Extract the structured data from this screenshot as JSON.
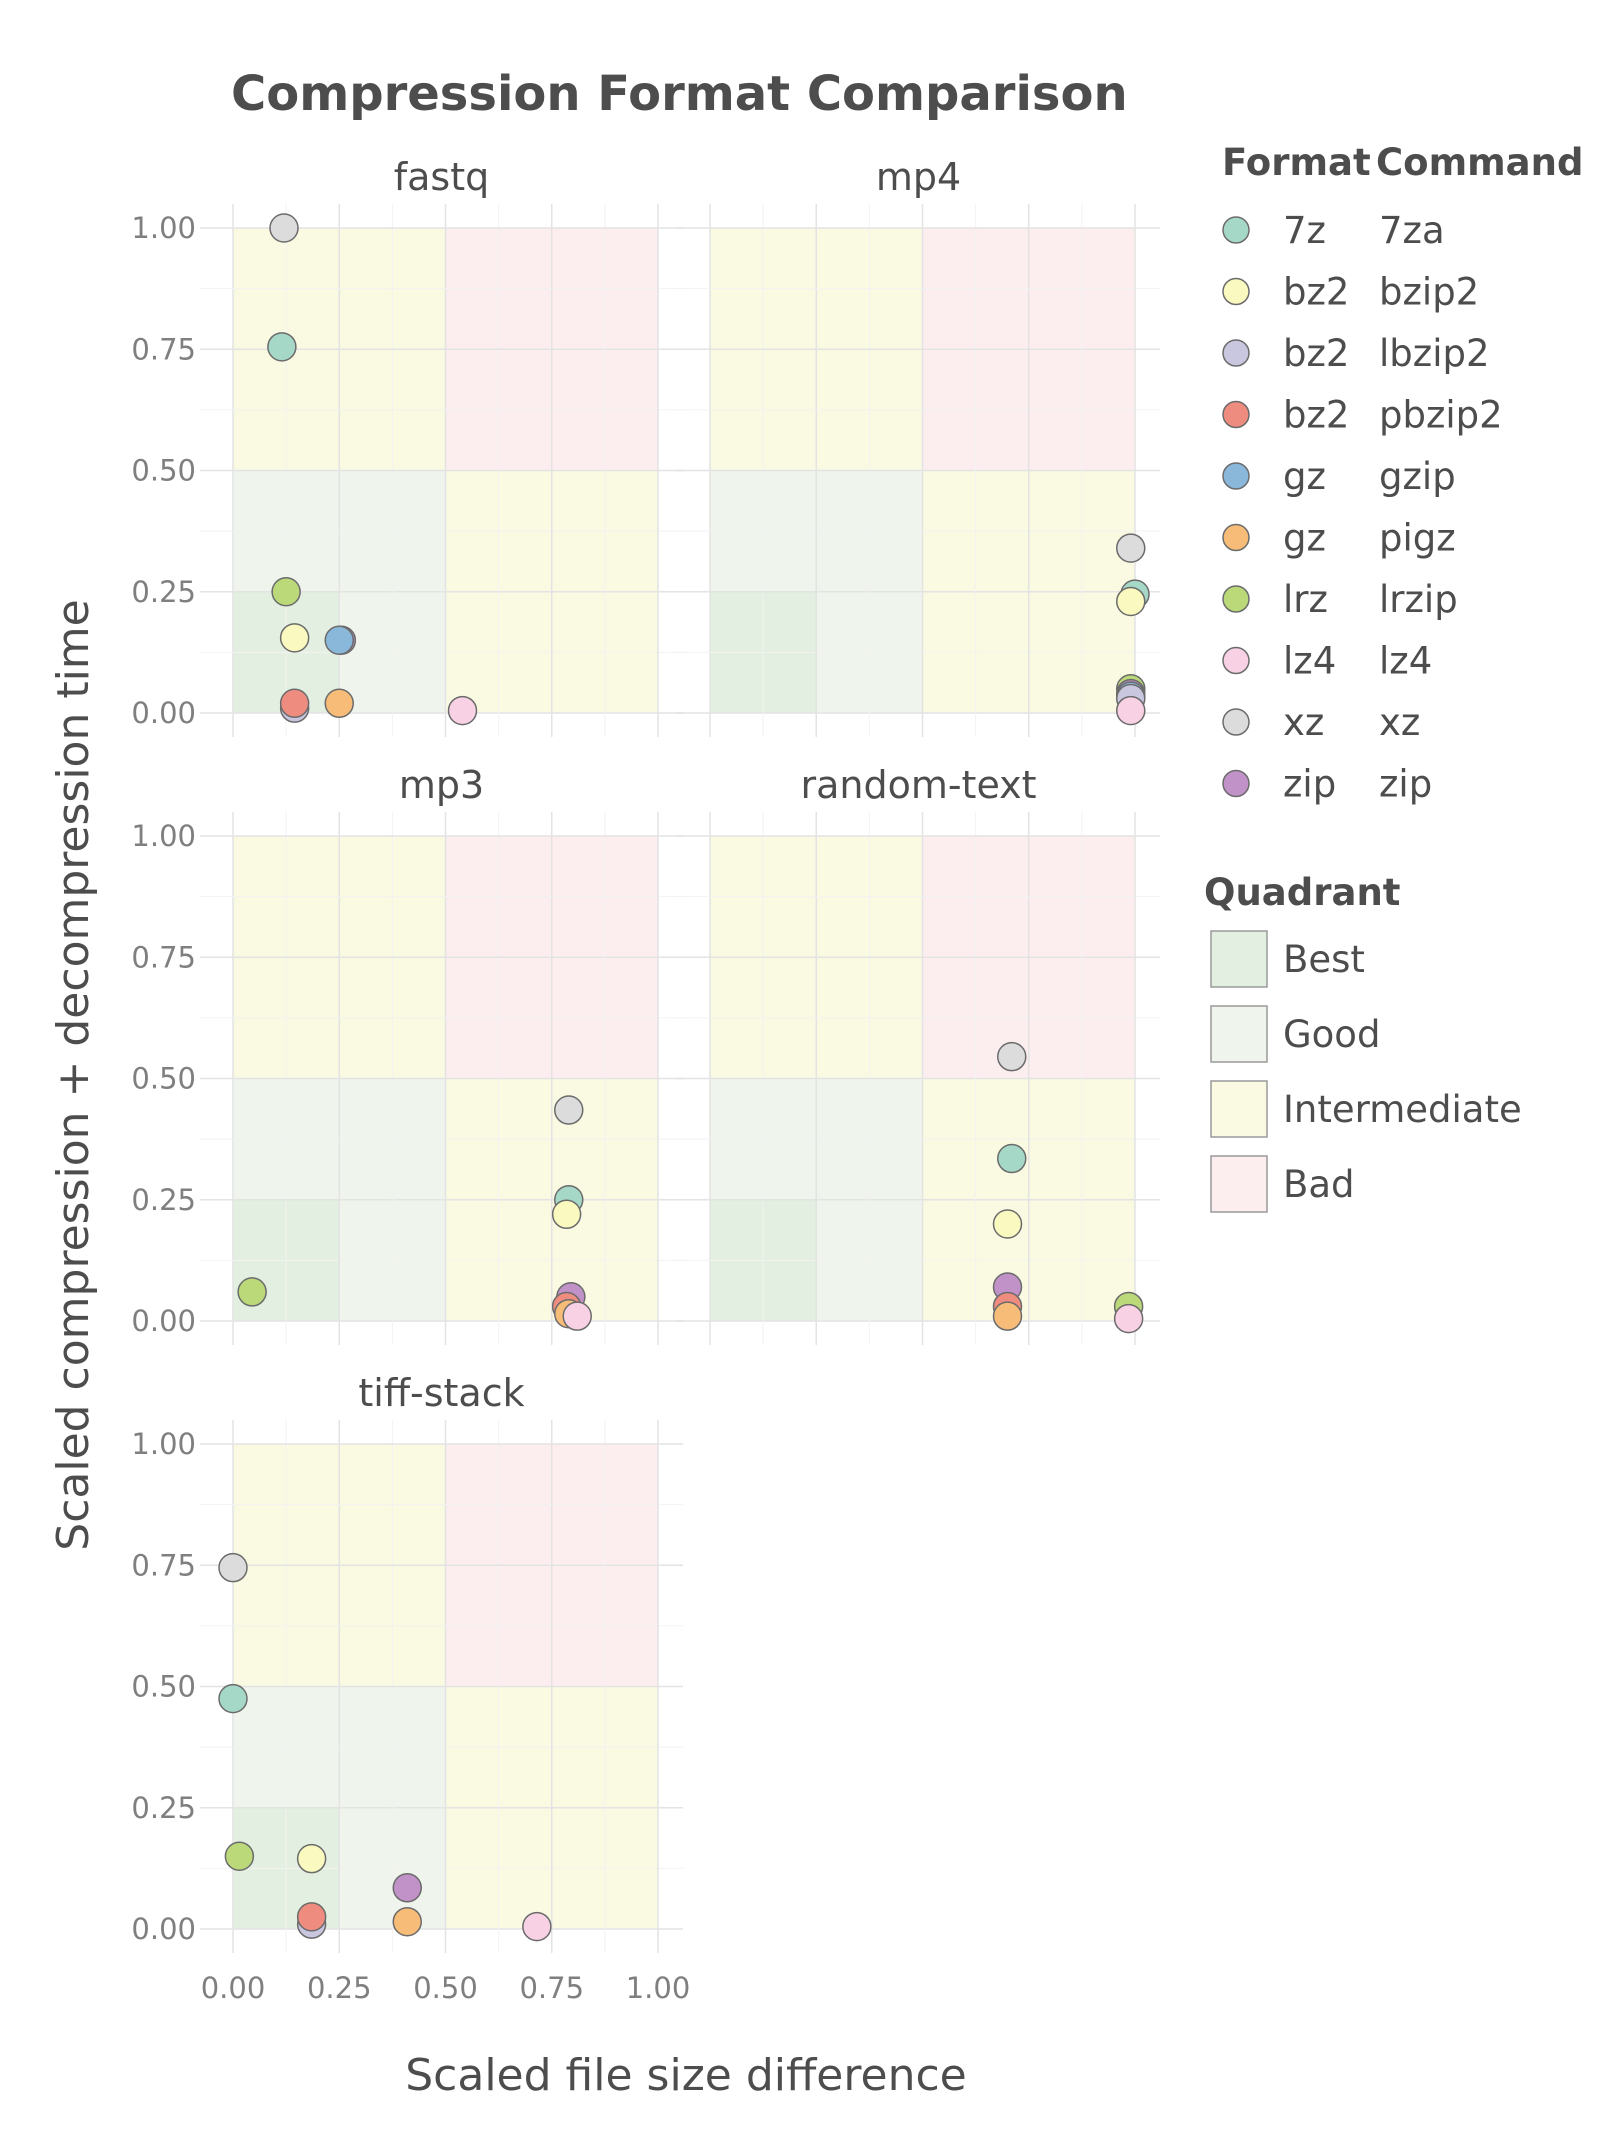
{
  "chart_data": {
    "type": "scatter",
    "title": "Compression Format Comparison",
    "xlabel": "Scaled file size difference",
    "ylabel": "Scaled compression + decompression time",
    "xlim": [
      0,
      1
    ],
    "ylim": [
      0,
      1
    ],
    "x_ticks": [
      0,
      0.25,
      0.5,
      0.75,
      1
    ],
    "y_ticks": [
      0,
      0.25,
      0.5,
      0.75,
      1
    ],
    "x_tick_labels": [
      "0.00",
      "0.25",
      "0.50",
      "0.75",
      "1.00"
    ],
    "y_tick_labels": [
      "0.00",
      "0.25",
      "0.50",
      "0.75",
      "1.00"
    ],
    "grid": true,
    "legend": {
      "placement": "right",
      "format_title": "Format",
      "command_title": "Command",
      "entries": [
        {
          "format": "7z",
          "command": "7za",
          "color": "#a6d8c8"
        },
        {
          "format": "bz2",
          "command": "bzip2",
          "color": "#fafac0"
        },
        {
          "format": "bz2",
          "command": "lbzip2",
          "color": "#c9c6e0"
        },
        {
          "format": "bz2",
          "command": "pbzip2",
          "color": "#ee8c80"
        },
        {
          "format": "gz",
          "command": "gzip",
          "color": "#8ab8db"
        },
        {
          "format": "gz",
          "command": "pigz",
          "color": "#f7bc78"
        },
        {
          "format": "lrz",
          "command": "lrzip",
          "color": "#bcd97a"
        },
        {
          "format": "lz4",
          "command": "lz4",
          "color": "#f8d2e4"
        },
        {
          "format": "xz",
          "command": "xz",
          "color": "#dcdcdc"
        },
        {
          "format": "zip",
          "command": "zip",
          "color": "#c192c8"
        }
      ],
      "quadrant_title": "Quadrant",
      "quadrants": [
        {
          "label": "Best",
          "color": "#e3efe0"
        },
        {
          "label": "Good",
          "color": "#eff5ec"
        },
        {
          "label": "Intermediate",
          "color": "#fafae2"
        },
        {
          "label": "Bad",
          "color": "#fcedef"
        }
      ]
    },
    "panels": [
      {
        "name": "fastq",
        "points": [
          {
            "command": "xz",
            "x": 0.12,
            "y": 1.0
          },
          {
            "command": "7za",
            "x": 0.115,
            "y": 0.755
          },
          {
            "command": "lrzip",
            "x": 0.125,
            "y": 0.25
          },
          {
            "command": "bzip2",
            "x": 0.145,
            "y": 0.155
          },
          {
            "command": "zip",
            "x": 0.255,
            "y": 0.15
          },
          {
            "command": "gzip",
            "x": 0.25,
            "y": 0.15
          },
          {
            "command": "lbzip2",
            "x": 0.145,
            "y": 0.01
          },
          {
            "command": "pbzip2",
            "x": 0.145,
            "y": 0.02
          },
          {
            "command": "pigz",
            "x": 0.25,
            "y": 0.02
          },
          {
            "command": "lz4",
            "x": 0.54,
            "y": 0.005
          }
        ]
      },
      {
        "name": "mp4",
        "points": [
          {
            "command": "xz",
            "x": 0.99,
            "y": 0.34
          },
          {
            "command": "7za",
            "x": 1.0,
            "y": 0.245
          },
          {
            "command": "bzip2",
            "x": 0.99,
            "y": 0.23
          },
          {
            "command": "lrzip",
            "x": 0.99,
            "y": 0.05
          },
          {
            "command": "zip",
            "x": 0.99,
            "y": 0.04
          },
          {
            "command": "gzip",
            "x": 0.99,
            "y": 0.035
          },
          {
            "command": "lbzip2",
            "x": 0.99,
            "y": 0.03
          },
          {
            "command": "lz4",
            "x": 0.99,
            "y": 0.005
          }
        ]
      },
      {
        "name": "mp3",
        "points": [
          {
            "command": "xz",
            "x": 0.79,
            "y": 0.435
          },
          {
            "command": "7za",
            "x": 0.79,
            "y": 0.25
          },
          {
            "command": "bzip2",
            "x": 0.785,
            "y": 0.22
          },
          {
            "command": "lrzip",
            "x": 0.045,
            "y": 0.06
          },
          {
            "command": "zip",
            "x": 0.795,
            "y": 0.05
          },
          {
            "command": "pbzip2",
            "x": 0.785,
            "y": 0.03
          },
          {
            "command": "pigz",
            "x": 0.79,
            "y": 0.015
          },
          {
            "command": "lz4",
            "x": 0.81,
            "y": 0.01
          }
        ]
      },
      {
        "name": "random-text",
        "points": [
          {
            "command": "xz",
            "x": 0.71,
            "y": 0.545
          },
          {
            "command": "7za",
            "x": 0.71,
            "y": 0.335
          },
          {
            "command": "bzip2",
            "x": 0.7,
            "y": 0.2
          },
          {
            "command": "zip",
            "x": 0.7,
            "y": 0.07
          },
          {
            "command": "pbzip2",
            "x": 0.7,
            "y": 0.03
          },
          {
            "command": "pigz",
            "x": 0.7,
            "y": 0.01
          },
          {
            "command": "lrzip",
            "x": 0.985,
            "y": 0.03
          },
          {
            "command": "lz4",
            "x": 0.985,
            "y": 0.005
          }
        ]
      },
      {
        "name": "tiff-stack",
        "points": [
          {
            "command": "xz",
            "x": 0.0,
            "y": 0.745
          },
          {
            "command": "7za",
            "x": 0.0,
            "y": 0.475
          },
          {
            "command": "lrzip",
            "x": 0.015,
            "y": 0.15
          },
          {
            "command": "bzip2",
            "x": 0.185,
            "y": 0.145
          },
          {
            "command": "zip",
            "x": 0.41,
            "y": 0.085
          },
          {
            "command": "lbzip2",
            "x": 0.185,
            "y": 0.01
          },
          {
            "command": "pbzip2",
            "x": 0.185,
            "y": 0.025
          },
          {
            "command": "pigz",
            "x": 0.41,
            "y": 0.015
          },
          {
            "command": "lz4",
            "x": 0.715,
            "y": 0.005
          }
        ]
      }
    ]
  }
}
